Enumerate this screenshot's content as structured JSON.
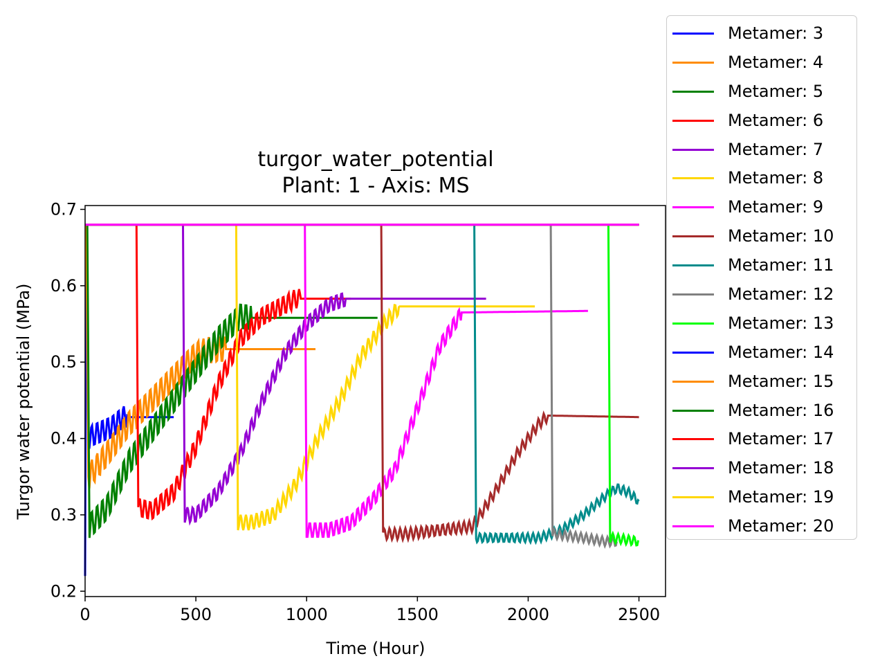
{
  "chart_data": {
    "type": "line",
    "title": "turgor_water_potential",
    "subtitle": "Plant: 1 - Axis: MS",
    "xlabel": "Time (Hour)",
    "ylabel": "Turgor water potential (MPa)",
    "xlim": [
      0,
      2620
    ],
    "ylim": [
      0.193,
      0.705
    ],
    "xticks": [
      "0",
      "500",
      "1000",
      "1500",
      "2000",
      "2500"
    ],
    "yticks": [
      "0.2",
      "0.3",
      "0.4",
      "0.5",
      "0.6",
      "0.7"
    ],
    "grid": false,
    "legend_position": "outside-right",
    "series": [
      {
        "name": "Metamer: 3",
        "color": "#0000ff",
        "x": [
          0,
          5,
          15,
          40,
          80,
          120,
          160,
          190,
          200,
          400
        ],
        "y": [
          0.22,
          0.68,
          0.4,
          0.405,
          0.41,
          0.415,
          0.425,
          0.43,
          0.428,
          0.428
        ],
        "osc": 0.03,
        "osc_end": 190
      },
      {
        "name": "Metamer: 4",
        "color": "#ff8c00",
        "x": [
          0,
          5,
          15,
          100,
          200,
          300,
          400,
          500,
          550,
          600,
          700,
          1040
        ],
        "y": [
          0.68,
          0.68,
          0.35,
          0.38,
          0.42,
          0.45,
          0.48,
          0.51,
          0.515,
          0.517,
          0.517,
          0.517
        ],
        "osc": 0.035,
        "osc_end": 640
      },
      {
        "name": "Metamer: 5",
        "color": "#008000",
        "x": [
          0,
          5,
          10,
          20,
          100,
          200,
          300,
          400,
          500,
          600,
          700,
          760,
          1320
        ],
        "y": [
          0.68,
          0.68,
          0.68,
          0.285,
          0.31,
          0.37,
          0.41,
          0.45,
          0.49,
          0.53,
          0.56,
          0.558,
          0.558
        ],
        "osc": 0.035,
        "osc_end": 750
      },
      {
        "name": "Metamer: 6",
        "color": "#ff0000",
        "x": [
          0,
          230,
          232,
          240,
          300,
          400,
          450,
          500,
          600,
          700,
          800,
          900,
          950,
          1200
        ],
        "y": [
          0.68,
          0.68,
          0.68,
          0.31,
          0.305,
          0.33,
          0.36,
          0.39,
          0.47,
          0.53,
          0.56,
          0.575,
          0.583,
          0.583
        ],
        "osc": 0.025,
        "osc_end": 970
      },
      {
        "name": "Metamer: 7",
        "color": "#9400d3",
        "x": [
          0,
          440,
          442,
          450,
          500,
          600,
          700,
          800,
          900,
          1000,
          1100,
          1180,
          1810
        ],
        "y": [
          0.68,
          0.68,
          0.68,
          0.3,
          0.3,
          0.33,
          0.38,
          0.45,
          0.51,
          0.55,
          0.575,
          0.583,
          0.583
        ],
        "osc": 0.02,
        "osc_end": 1180
      },
      {
        "name": "Metamer: 8",
        "color": "#ffd700",
        "x": [
          0,
          680,
          682,
          690,
          750,
          850,
          950,
          1050,
          1150,
          1250,
          1350,
          1420,
          2030
        ],
        "y": [
          0.68,
          0.68,
          0.68,
          0.29,
          0.29,
          0.3,
          0.34,
          0.4,
          0.45,
          0.51,
          0.55,
          0.573,
          0.573
        ],
        "osc": 0.02,
        "osc_end": 1420
      },
      {
        "name": "Metamer: 9",
        "color": "#ff00ff",
        "x": [
          0,
          990,
          992,
          1000,
          1100,
          1200,
          1300,
          1400,
          1500,
          1600,
          1700,
          2270
        ],
        "y": [
          0.68,
          0.68,
          0.68,
          0.28,
          0.28,
          0.29,
          0.32,
          0.36,
          0.44,
          0.52,
          0.565,
          0.567
        ],
        "osc": 0.02,
        "osc_end": 1700
      },
      {
        "name": "Metamer: 10",
        "color": "#a52a2a",
        "x": [
          0,
          1335,
          1337,
          1345,
          1450,
          1600,
          1750,
          1850,
          1950,
          2050,
          2090,
          2500
        ],
        "y": [
          0.68,
          0.68,
          0.68,
          0.275,
          0.275,
          0.28,
          0.285,
          0.33,
          0.38,
          0.42,
          0.43,
          0.428
        ],
        "osc": 0.015,
        "osc_end": 2090
      },
      {
        "name": "Metamer: 11",
        "color": "#008b8b",
        "x": [
          0,
          1755,
          1757,
          1765,
          1900,
          2050,
          2150,
          2250,
          2350,
          2400,
          2450,
          2500
        ],
        "y": [
          0.68,
          0.68,
          0.68,
          0.27,
          0.27,
          0.27,
          0.28,
          0.3,
          0.325,
          0.335,
          0.33,
          0.318
        ],
        "osc": 0.012,
        "osc_end": 2500
      },
      {
        "name": "Metamer: 12",
        "color": "#808080",
        "x": [
          0,
          2100,
          2102,
          2110,
          2250,
          2350,
          2400
        ],
        "y": [
          0.68,
          0.68,
          0.68,
          0.275,
          0.27,
          0.265,
          0.265
        ],
        "osc": 0.012,
        "osc_end": 2400
      },
      {
        "name": "Metamer: 13",
        "color": "#00ff00",
        "x": [
          0,
          2360,
          2362,
          2370,
          2430,
          2500
        ],
        "y": [
          0.68,
          0.68,
          0.68,
          0.27,
          0.268,
          0.265
        ],
        "osc": 0.012,
        "osc_end": 2500
      },
      {
        "name": "Metamer: 14",
        "color": "#0000ff",
        "x": [
          0,
          2500
        ],
        "y": [
          0.68,
          0.68
        ],
        "osc": 0,
        "osc_end": 0
      },
      {
        "name": "Metamer: 15",
        "color": "#ff8c00",
        "x": [
          0,
          2500
        ],
        "y": [
          0.68,
          0.68
        ],
        "osc": 0,
        "osc_end": 0
      },
      {
        "name": "Metamer: 16",
        "color": "#008000",
        "x": [
          0,
          2500
        ],
        "y": [
          0.68,
          0.68
        ],
        "osc": 0,
        "osc_end": 0
      },
      {
        "name": "Metamer: 17",
        "color": "#ff0000",
        "x": [
          0,
          2500
        ],
        "y": [
          0.68,
          0.68
        ],
        "osc": 0,
        "osc_end": 0
      },
      {
        "name": "Metamer: 18",
        "color": "#9400d3",
        "x": [
          0,
          2500
        ],
        "y": [
          0.68,
          0.68
        ],
        "osc": 0,
        "osc_end": 0
      },
      {
        "name": "Metamer: 19",
        "color": "#ffd700",
        "x": [
          0,
          2500
        ],
        "y": [
          0.68,
          0.68
        ],
        "osc": 0,
        "osc_end": 0
      },
      {
        "name": "Metamer: 20",
        "color": "#ff00ff",
        "x": [
          0,
          2500
        ],
        "y": [
          0.68,
          0.68
        ],
        "osc": 0,
        "osc_end": 0
      }
    ]
  }
}
